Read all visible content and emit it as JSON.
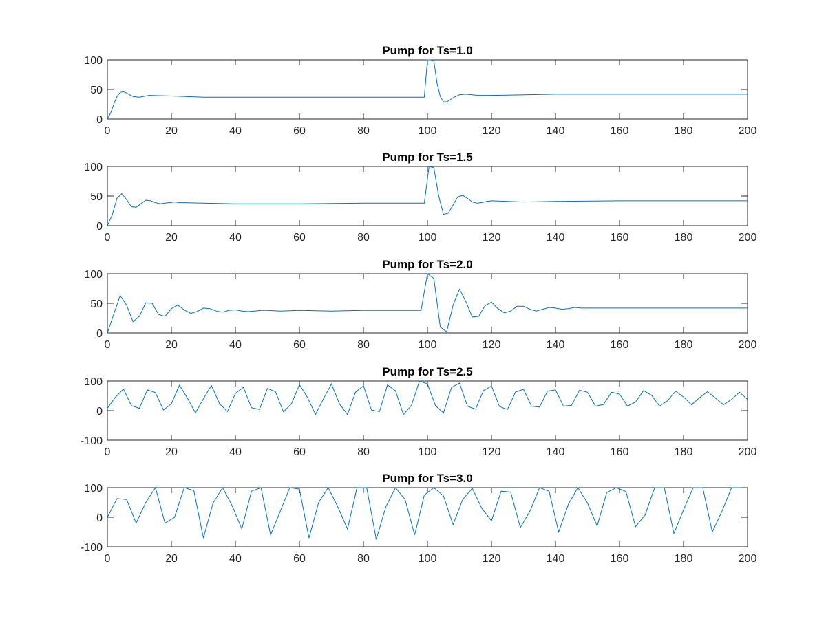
{
  "chart_data": [
    {
      "type": "line",
      "title": "Pump for Ts=1.0",
      "xlim": [
        0,
        200
      ],
      "ylim": [
        0,
        100
      ],
      "xticks": [
        0,
        20,
        40,
        60,
        80,
        100,
        120,
        140,
        160,
        180,
        200
      ],
      "yticks": [
        0,
        50,
        100
      ],
      "color": "#0072bd",
      "series": [
        {
          "x": [
            0,
            1,
            2,
            3,
            4,
            5,
            6,
            8,
            10,
            13,
            20,
            30,
            40,
            60,
            80,
            99,
            100,
            101,
            102,
            103,
            104,
            105,
            106,
            107,
            108,
            110,
            112,
            116,
            120,
            140,
            160,
            180,
            200
          ],
          "y": [
            0,
            10,
            25,
            38,
            45,
            46,
            44,
            38,
            37,
            40,
            39,
            37,
            37,
            37,
            37,
            37,
            100,
            100,
            98,
            60,
            38,
            29,
            29,
            32,
            36,
            41,
            42,
            40,
            40,
            42,
            42,
            42,
            42
          ]
        }
      ]
    },
    {
      "type": "line",
      "title": "Pump for Ts=1.5",
      "xlim": [
        0,
        200
      ],
      "ylim": [
        0,
        100
      ],
      "xticks": [
        0,
        20,
        40,
        60,
        80,
        100,
        120,
        140,
        160,
        180,
        200
      ],
      "yticks": [
        0,
        50,
        100
      ],
      "color": "#0072bd",
      "series": [
        {
          "x": [
            0,
            1.5,
            3,
            4.5,
            6,
            7.5,
            9,
            10.5,
            12,
            13.5,
            15,
            16.5,
            18,
            19.5,
            21,
            22.5,
            30,
            40,
            60,
            80,
            99,
            100.5,
            102,
            103.5,
            105,
            106.5,
            108,
            109.5,
            111,
            112.5,
            114,
            115.5,
            117,
            118.5,
            120,
            130,
            140,
            160,
            180,
            200
          ],
          "y": [
            0,
            18,
            46,
            54,
            44,
            32,
            31,
            37,
            43,
            42,
            39,
            37,
            38,
            39,
            40,
            39,
            38,
            37,
            37,
            38,
            38,
            100,
            98,
            50,
            19,
            21,
            35,
            49,
            51,
            46,
            40,
            38,
            39,
            41,
            42,
            40,
            41,
            42,
            42,
            42
          ]
        }
      ]
    },
    {
      "type": "line",
      "title": "Pump for Ts=2.0",
      "xlim": [
        0,
        200
      ],
      "ylim": [
        0,
        100
      ],
      "xticks": [
        0,
        20,
        40,
        60,
        80,
        100,
        120,
        140,
        160,
        180,
        200
      ],
      "yticks": [
        0,
        50,
        100
      ],
      "color": "#0072bd",
      "series": [
        {
          "x": [
            0,
            2,
            4,
            6,
            8,
            10,
            12,
            14,
            16,
            18,
            20,
            22,
            24,
            26,
            28,
            30,
            32,
            34,
            36,
            38,
            40,
            42,
            44,
            46,
            48,
            50,
            54,
            60,
            70,
            80,
            98,
            100,
            102,
            104,
            106,
            108,
            110,
            112,
            114,
            116,
            118,
            120,
            122,
            124,
            126,
            128,
            130,
            132,
            134,
            136,
            138,
            140,
            142,
            144,
            146,
            148,
            150,
            160,
            180,
            200
          ],
          "y": [
            0,
            32,
            63,
            47,
            19,
            28,
            51,
            50,
            31,
            28,
            41,
            47,
            39,
            33,
            36,
            42,
            41,
            37,
            35,
            38,
            39,
            37,
            36,
            37,
            38,
            38,
            37,
            38,
            37,
            38,
            38,
            100,
            92,
            10,
            2,
            47,
            74,
            53,
            27,
            28,
            46,
            52,
            41,
            34,
            37,
            45,
            45,
            40,
            37,
            40,
            43,
            42,
            40,
            41,
            43,
            42,
            42,
            42,
            42,
            42
          ]
        }
      ]
    },
    {
      "type": "line",
      "title": "Pump for Ts=2.5",
      "xlim": [
        0,
        200
      ],
      "ylim": [
        -100,
        100
      ],
      "xticks": [
        0,
        20,
        40,
        60,
        80,
        100,
        120,
        140,
        160,
        180,
        200
      ],
      "yticks": [
        -100,
        0,
        100
      ],
      "color": "#0072bd",
      "series": [
        {
          "x": [
            0,
            2.5,
            5,
            7.5,
            10,
            12.5,
            15,
            17.5,
            20,
            22.5,
            25,
            27.5,
            30,
            32.5,
            35,
            37.5,
            40,
            42.5,
            45,
            47.5,
            50,
            52.5,
            55,
            57.5,
            60,
            62.5,
            65,
            67.5,
            70,
            72.5,
            75,
            77.5,
            80,
            82.5,
            85,
            87.5,
            90,
            92.5,
            95,
            97.5,
            100,
            102.5,
            105,
            107.5,
            110,
            112.5,
            115,
            117.5,
            120,
            122.5,
            125,
            127.5,
            130,
            132.5,
            135,
            137.5,
            140,
            142.5,
            145,
            147.5,
            150,
            152.5,
            155,
            157.5,
            160,
            162.5,
            165,
            167.5,
            170,
            172.5,
            175,
            177.5,
            180,
            182.5,
            185,
            187.5,
            190,
            192.5,
            195,
            197.5,
            200
          ],
          "y": [
            8,
            45,
            73,
            17,
            8,
            70,
            61,
            2,
            23,
            86,
            42,
            -8,
            40,
            85,
            24,
            -3,
            58,
            79,
            10,
            4,
            75,
            64,
            -4,
            23,
            88,
            45,
            -13,
            40,
            90,
            23,
            -13,
            62,
            84,
            2,
            -3,
            87,
            67,
            -13,
            18,
            100,
            90,
            17,
            -8,
            78,
            93,
            15,
            5,
            68,
            83,
            14,
            4,
            63,
            72,
            15,
            12,
            66,
            70,
            15,
            18,
            69,
            62,
            15,
            21,
            62,
            56,
            15,
            29,
            68,
            52,
            15,
            33,
            66,
            46,
            20,
            44,
            64,
            42,
            20,
            38,
            62,
            38
          ]
        }
      ]
    },
    {
      "type": "line",
      "title": "Pump for Ts=3.0",
      "xlim": [
        0,
        200
      ],
      "ylim": [
        -100,
        100
      ],
      "xticks": [
        0,
        20,
        40,
        60,
        80,
        100,
        120,
        140,
        160,
        180,
        200
      ],
      "yticks": [
        -100,
        0,
        100
      ],
      "color": "#0072bd",
      "series": [
        {
          "x": [
            0,
            3,
            6,
            9,
            12,
            15,
            18,
            21,
            24,
            27,
            30,
            33,
            36,
            39,
            42,
            45,
            48,
            51,
            54,
            57,
            60,
            63,
            66,
            69,
            72,
            75,
            78,
            81,
            84,
            87,
            90,
            93,
            96,
            99,
            102,
            105,
            108,
            111,
            114,
            117,
            120,
            123,
            126,
            129,
            132,
            135,
            138,
            141,
            144,
            147,
            150,
            153,
            156,
            159,
            162,
            165,
            168,
            171,
            174,
            177,
            180,
            183,
            186,
            189,
            192,
            195,
            198
          ],
          "y": [
            0,
            63,
            60,
            -20,
            50,
            100,
            -20,
            0,
            100,
            90,
            -70,
            48,
            100,
            38,
            -40,
            88,
            100,
            -60,
            20,
            100,
            95,
            -70,
            50,
            100,
            35,
            -40,
            100,
            100,
            -75,
            35,
            100,
            60,
            -60,
            75,
            100,
            72,
            -25,
            60,
            98,
            30,
            -12,
            88,
            85,
            -35,
            20,
            100,
            88,
            -50,
            43,
            100,
            48,
            -30,
            83,
            100,
            87,
            -32,
            8,
            100,
            100,
            -55,
            25,
            100,
            100,
            -50,
            20,
            100,
            100
          ]
        }
      ]
    }
  ]
}
